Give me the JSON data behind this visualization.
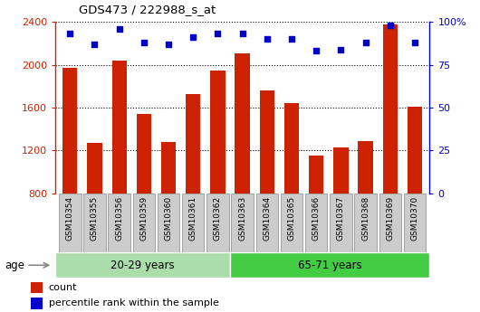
{
  "title": "GDS473 / 222988_s_at",
  "samples": [
    "GSM10354",
    "GSM10355",
    "GSM10356",
    "GSM10359",
    "GSM10360",
    "GSM10361",
    "GSM10362",
    "GSM10363",
    "GSM10364",
    "GSM10365",
    "GSM10366",
    "GSM10367",
    "GSM10368",
    "GSM10369",
    "GSM10370"
  ],
  "counts": [
    1970,
    1270,
    2040,
    1540,
    1280,
    1730,
    1950,
    2110,
    1760,
    1640,
    1150,
    1230,
    1290,
    2380,
    1610
  ],
  "percentiles": [
    93,
    87,
    96,
    88,
    87,
    91,
    93,
    93,
    90,
    90,
    83,
    84,
    88,
    98,
    88
  ],
  "group1_label": "20-29 years",
  "group2_label": "65-71 years",
  "group1_count": 7,
  "group2_count": 8,
  "bar_color": "#cc2200",
  "dot_color": "#0000cc",
  "group1_color": "#aaddaa",
  "group2_color": "#44cc44",
  "ylim_left": [
    800,
    2400
  ],
  "ylim_right": [
    0,
    100
  ],
  "yticks_left": [
    800,
    1200,
    1600,
    2000,
    2400
  ],
  "yticks_right": [
    0,
    25,
    50,
    75,
    100
  ],
  "legend_count_label": "count",
  "legend_pct_label": "percentile rank within the sample",
  "age_label": "age",
  "grid_vals": [
    1200,
    1600,
    2000,
    2400
  ],
  "tick_bg_color": "#cccccc",
  "tick_border_color": "#888888"
}
